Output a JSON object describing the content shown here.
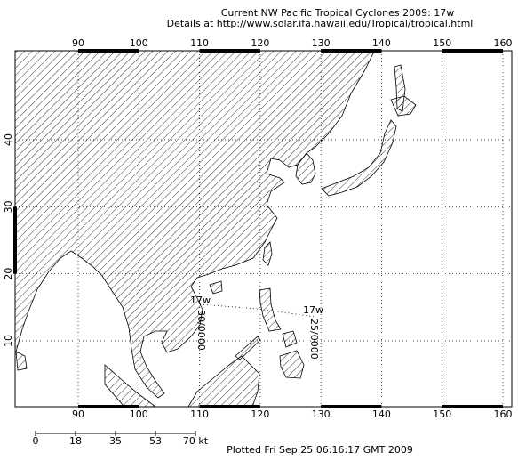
{
  "header": {
    "title": "Current NW Pacific Tropical Cyclones 2009: 17w",
    "subtitle": "Details at http://www.solar.ifa.hawaii.edu/Tropical/tropical.html"
  },
  "map": {
    "lon_ticks": [
      90,
      100,
      110,
      120,
      130,
      140,
      150,
      160
    ],
    "lat_ticks": [
      10,
      20,
      30,
      40
    ],
    "grid": true
  },
  "storms": [
    {
      "name": "17w",
      "label": "30/0000"
    },
    {
      "name": "17w",
      "label": "25/0000"
    }
  ],
  "scale": {
    "labels": [
      "0",
      "18",
      "35",
      "53",
      "70 kt"
    ]
  },
  "footer": "Plotted Fri Sep 25 06:16:17 GMT 2009"
}
